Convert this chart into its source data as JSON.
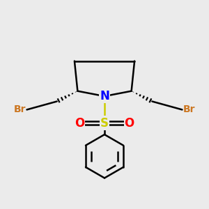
{
  "bg_color": "#ebebeb",
  "ring_color": "#000000",
  "N_color": "#0000ff",
  "S_color": "#cccc00",
  "O_color": "#ff0000",
  "Br_color": "#cc7722",
  "bond_lw": 1.8,
  "fig_size": [
    3.0,
    3.0
  ],
  "dpi": 100,
  "xlim": [
    0,
    10
  ],
  "ylim": [
    0,
    10
  ]
}
